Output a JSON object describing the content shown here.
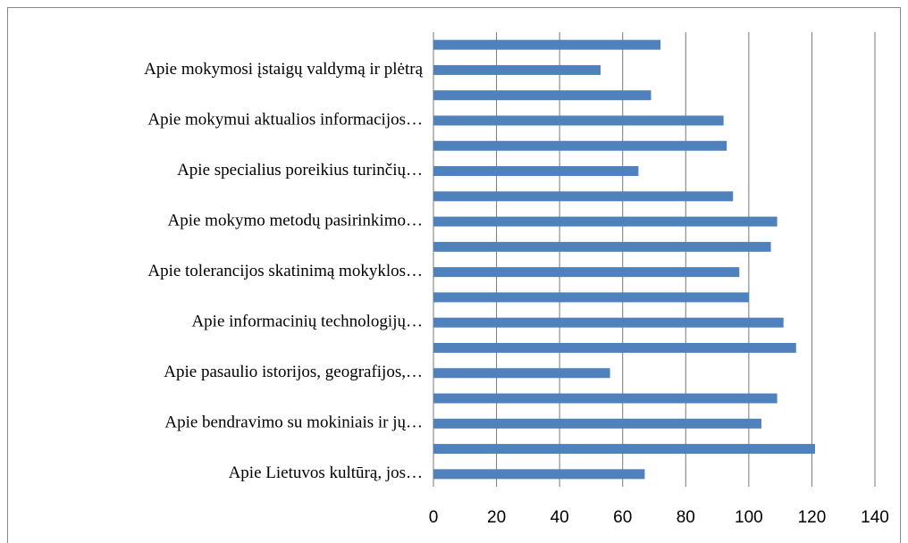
{
  "chart_data": {
    "type": "hbar",
    "categories": [
      "Apie Lietuvos kultūrą, jos…",
      null,
      "Apie bendravimo su mokiniais ir jų…",
      null,
      "Apie pasaulio istorijos, geografijos,…",
      null,
      "Apie informacinių technologijų…",
      null,
      "Apie tolerancijos skatinimą mokyklos…",
      null,
      "Apie mokymo metodų pasirinkimo…",
      null,
      "Apie specialius poreikius turinčių…",
      null,
      "Apie mokymui aktualios informacijos…",
      null,
      "Apie mokymosi įstaigų valdymą ir plėtrą",
      null
    ],
    "values": [
      67,
      121,
      104,
      109,
      56,
      115,
      111,
      100,
      97,
      107,
      109,
      95,
      65,
      93,
      92,
      69,
      53,
      72
    ],
    "color": "#4f81bd",
    "xlim": [
      0,
      140
    ],
    "xticks": [
      0,
      20,
      40,
      60,
      80,
      100,
      120,
      140
    ],
    "grid": true
  }
}
